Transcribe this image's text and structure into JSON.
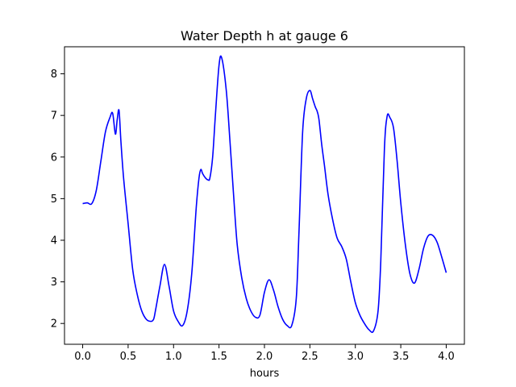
{
  "chart_data": {
    "type": "line",
    "title": "Water Depth h at gauge 6",
    "xlabel": "hours",
    "ylabel": "",
    "xlim": [
      -0.2,
      4.2
    ],
    "ylim": [
      1.5,
      8.65
    ],
    "xticks": [
      0.0,
      0.5,
      1.0,
      1.5,
      2.0,
      2.5,
      3.0,
      3.5,
      4.0
    ],
    "xtick_labels": [
      "0.0",
      "0.5",
      "1.0",
      "1.5",
      "2.0",
      "2.5",
      "3.0",
      "3.5",
      "4.0"
    ],
    "yticks": [
      2,
      3,
      4,
      5,
      6,
      7,
      8
    ],
    "ytick_labels": [
      "2",
      "3",
      "4",
      "5",
      "6",
      "7",
      "8"
    ],
    "grid": false,
    "color": "#0000ff",
    "series": [
      {
        "x": [
          0.0,
          0.05,
          0.1,
          0.15,
          0.2,
          0.25,
          0.3,
          0.33,
          0.36,
          0.38,
          0.4,
          0.42,
          0.45,
          0.5,
          0.55,
          0.6,
          0.65,
          0.7,
          0.75,
          0.78,
          0.8,
          0.85,
          0.9,
          0.95,
          1.0,
          1.05,
          1.1,
          1.15,
          1.2,
          1.25,
          1.28,
          1.3,
          1.32,
          1.35,
          1.38,
          1.4,
          1.43,
          1.46,
          1.5,
          1.53,
          1.58,
          1.62,
          1.66,
          1.7,
          1.75,
          1.8,
          1.85,
          1.9,
          1.95,
          2.0,
          2.05,
          2.1,
          2.15,
          2.2,
          2.25,
          2.3,
          2.35,
          2.38,
          2.42,
          2.46,
          2.5,
          2.53,
          2.56,
          2.58,
          2.6,
          2.63,
          2.66,
          2.7,
          2.75,
          2.8,
          2.85,
          2.9,
          2.95,
          3.0,
          3.05,
          3.1,
          3.15,
          3.2,
          3.25,
          3.28,
          3.32,
          3.35,
          3.38,
          3.42,
          3.46,
          3.5,
          3.55,
          3.6,
          3.65,
          3.7,
          3.75,
          3.8,
          3.85,
          3.9,
          3.95,
          4.0
        ],
        "y": [
          4.88,
          4.9,
          4.88,
          5.2,
          5.9,
          6.6,
          6.95,
          7.05,
          6.55,
          6.9,
          7.12,
          6.4,
          5.5,
          4.4,
          3.3,
          2.7,
          2.3,
          2.1,
          2.05,
          2.1,
          2.3,
          2.9,
          3.42,
          2.9,
          2.3,
          2.05,
          1.95,
          2.3,
          3.2,
          4.8,
          5.5,
          5.7,
          5.6,
          5.5,
          5.45,
          5.5,
          6.0,
          7.0,
          8.2,
          8.38,
          7.6,
          6.4,
          5.1,
          3.9,
          3.1,
          2.6,
          2.3,
          2.15,
          2.2,
          2.75,
          3.05,
          2.8,
          2.4,
          2.1,
          1.95,
          1.95,
          2.6,
          4.2,
          6.6,
          7.4,
          7.6,
          7.4,
          7.2,
          7.1,
          6.9,
          6.3,
          5.8,
          5.1,
          4.5,
          4.05,
          3.85,
          3.55,
          3.0,
          2.5,
          2.2,
          2.0,
          1.85,
          1.82,
          2.3,
          3.5,
          6.2,
          6.98,
          6.95,
          6.7,
          5.9,
          4.9,
          3.9,
          3.2,
          2.97,
          3.3,
          3.8,
          4.1,
          4.12,
          3.95,
          3.6,
          3.22
        ]
      }
    ]
  }
}
